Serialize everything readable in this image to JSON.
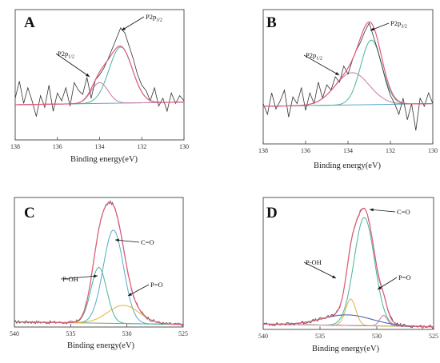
{
  "chart_data": [
    {
      "type": "line",
      "panel_label": "A",
      "xlabel": "Binding energy(eV)",
      "ylabel": "",
      "xlim": [
        138,
        130
      ],
      "ylim": [
        0,
        1
      ],
      "xticks": [
        138,
        136,
        134,
        132,
        130
      ],
      "grid": false,
      "colors": {
        "raw": "#333333",
        "fit": "#e05c78",
        "background": "#5aa8c8",
        "comp1": "#4bb39a",
        "comp2": "#c77aa6"
      },
      "annotations": [
        {
          "base": "P2p",
          "sub": "3/2",
          "x": 133.0,
          "y": 0.8
        },
        {
          "base": "P2p",
          "sub": "1/2",
          "x": 133.9,
          "y": 0.46
        }
      ],
      "series": [
        {
          "role": "raw",
          "x": [
            138.0,
            137.8,
            137.6,
            137.4,
            137.2,
            137.0,
            136.8,
            136.6,
            136.4,
            136.2,
            136.0,
            135.8,
            135.6,
            135.4,
            135.2,
            135.0,
            134.8,
            134.6,
            134.4,
            134.2,
            134.0,
            133.8,
            133.6,
            133.4,
            133.2,
            133.0,
            132.8,
            132.6,
            132.4,
            132.2,
            132.0,
            131.8,
            131.6,
            131.4,
            131.2,
            131.0,
            130.8,
            130.6,
            130.4,
            130.2,
            130.0
          ],
          "y": [
            0.32,
            0.45,
            0.28,
            0.4,
            0.3,
            0.18,
            0.34,
            0.25,
            0.42,
            0.22,
            0.36,
            0.3,
            0.4,
            0.26,
            0.44,
            0.38,
            0.35,
            0.48,
            0.32,
            0.46,
            0.5,
            0.55,
            0.62,
            0.7,
            0.78,
            0.86,
            0.82,
            0.72,
            0.62,
            0.5,
            0.42,
            0.38,
            0.3,
            0.4,
            0.26,
            0.32,
            0.22,
            0.36,
            0.28,
            0.34,
            0.3
          ]
        },
        {
          "role": "background",
          "x": [
            138,
            130
          ],
          "y": [
            0.27,
            0.29
          ]
        },
        {
          "role": "comp",
          "name": "",
          "center": 133.0,
          "height": 0.43,
          "width": 0.55
        },
        {
          "role": "comp",
          "name": "",
          "center": 134.0,
          "height": 0.16,
          "width": 0.4
        }
      ]
    },
    {
      "type": "line",
      "panel_label": "B",
      "xlabel": "Binding energy(eV)",
      "ylabel": "",
      "xlim": [
        138,
        130
      ],
      "ylim": [
        0,
        1
      ],
      "xticks": [
        138,
        136,
        134,
        132,
        130
      ],
      "grid": false,
      "colors": {
        "raw": "#333333",
        "fit": "#e05c78",
        "background": "#5aa8c8",
        "comp1": "#4bb39a",
        "comp2": "#c77aa6"
      },
      "annotations": [
        {
          "base": "P2p",
          "sub": "3/2",
          "x": 132.8,
          "y": 0.86
        },
        {
          "base": "P2p",
          "sub": "1/2",
          "x": 133.4,
          "y": 0.46
        }
      ],
      "series": [
        {
          "role": "raw",
          "x": [
            138.0,
            137.8,
            137.6,
            137.4,
            137.2,
            137.0,
            136.8,
            136.6,
            136.4,
            136.2,
            136.0,
            135.8,
            135.6,
            135.4,
            135.2,
            135.0,
            134.8,
            134.6,
            134.4,
            134.2,
            134.0,
            133.8,
            133.6,
            133.4,
            133.2,
            133.0,
            132.8,
            132.6,
            132.4,
            132.2,
            132.0,
            131.8,
            131.6,
            131.4,
            131.2,
            131.0,
            130.8,
            130.6,
            130.4,
            130.2,
            130.0
          ],
          "y": [
            0.3,
            0.22,
            0.38,
            0.26,
            0.32,
            0.4,
            0.2,
            0.35,
            0.3,
            0.42,
            0.25,
            0.38,
            0.3,
            0.46,
            0.34,
            0.44,
            0.4,
            0.5,
            0.46,
            0.58,
            0.52,
            0.62,
            0.7,
            0.76,
            0.84,
            0.9,
            0.8,
            0.7,
            0.58,
            0.46,
            0.36,
            0.3,
            0.22,
            0.34,
            0.18,
            0.3,
            0.1,
            0.34,
            0.28,
            0.38,
            0.3
          ]
        },
        {
          "role": "background",
          "x": [
            138,
            130
          ],
          "y": [
            0.28,
            0.3
          ]
        },
        {
          "role": "comp",
          "name": "",
          "center": 132.9,
          "height": 0.48,
          "width": 0.5
        },
        {
          "role": "comp",
          "name": "",
          "center": 133.8,
          "height": 0.24,
          "width": 0.8
        }
      ]
    },
    {
      "type": "line",
      "panel_label": "C",
      "xlabel": "Binding energy(eV)",
      "ylabel": "",
      "xlim": [
        540,
        525
      ],
      "ylim": [
        0,
        1
      ],
      "xticks": [
        540,
        535,
        530,
        525
      ],
      "grid": false,
      "colors": {
        "raw": "#555555",
        "fit": "#e05c78",
        "background": "#7aa070",
        "comp1": "#5aa8c8",
        "comp2": "#4bb39a",
        "comp3": "#e0b040"
      },
      "annotations": [
        {
          "text": "C=O",
          "x": 531.2,
          "y": 0.66
        },
        {
          "text": "P-OH",
          "x": 532.6,
          "y": 0.44
        },
        {
          "text": "P=O",
          "x": 530.3,
          "y": 0.12
        }
      ],
      "series": [
        {
          "role": "background",
          "x": [
            540,
            525
          ],
          "y": [
            0.04,
            0.02
          ]
        },
        {
          "role": "comp",
          "name": "",
          "center": 531.2,
          "height": 0.72,
          "width": 0.9
        },
        {
          "role": "comp",
          "name": "",
          "center": 532.5,
          "height": 0.43,
          "width": 0.7
        },
        {
          "role": "comp",
          "name": "",
          "center": 530.3,
          "height": 0.14,
          "width": 1.4
        }
      ]
    },
    {
      "type": "line",
      "panel_label": "D",
      "xlabel": "Binding energy(eV)",
      "ylabel": "",
      "xlim": [
        540,
        525
      ],
      "ylim": [
        0,
        1
      ],
      "xticks": [
        540,
        535,
        530,
        525
      ],
      "grid": false,
      "colors": {
        "raw": "#444444",
        "fit": "#e05c78",
        "background": "#7aa070",
        "comp1": "#4bb39a",
        "comp2": "#e0b040",
        "comp3": "#c77aa6",
        "comp4": "#3a5fb0"
      },
      "annotations": [
        {
          "text": "C=O",
          "x": 531.0,
          "y": 0.82
        },
        {
          "text": "P-OH",
          "x": 532.3,
          "y": 0.24
        },
        {
          "text": "P=O",
          "x": 529.4,
          "y": 0.1
        }
      ],
      "series": [
        {
          "role": "background",
          "x": [
            540,
            525
          ],
          "y": [
            0.04,
            0.02
          ]
        },
        {
          "role": "comp",
          "name": "",
          "center": 531.1,
          "height": 0.82,
          "width": 0.9
        },
        {
          "role": "comp",
          "name": "",
          "center": 532.3,
          "height": 0.2,
          "width": 0.45
        },
        {
          "role": "comp",
          "name": "",
          "center": 529.4,
          "height": 0.08,
          "width": 0.35
        },
        {
          "role": "comp",
          "name": "",
          "center": 532.6,
          "height": 0.08,
          "width": 2.2
        }
      ]
    }
  ]
}
